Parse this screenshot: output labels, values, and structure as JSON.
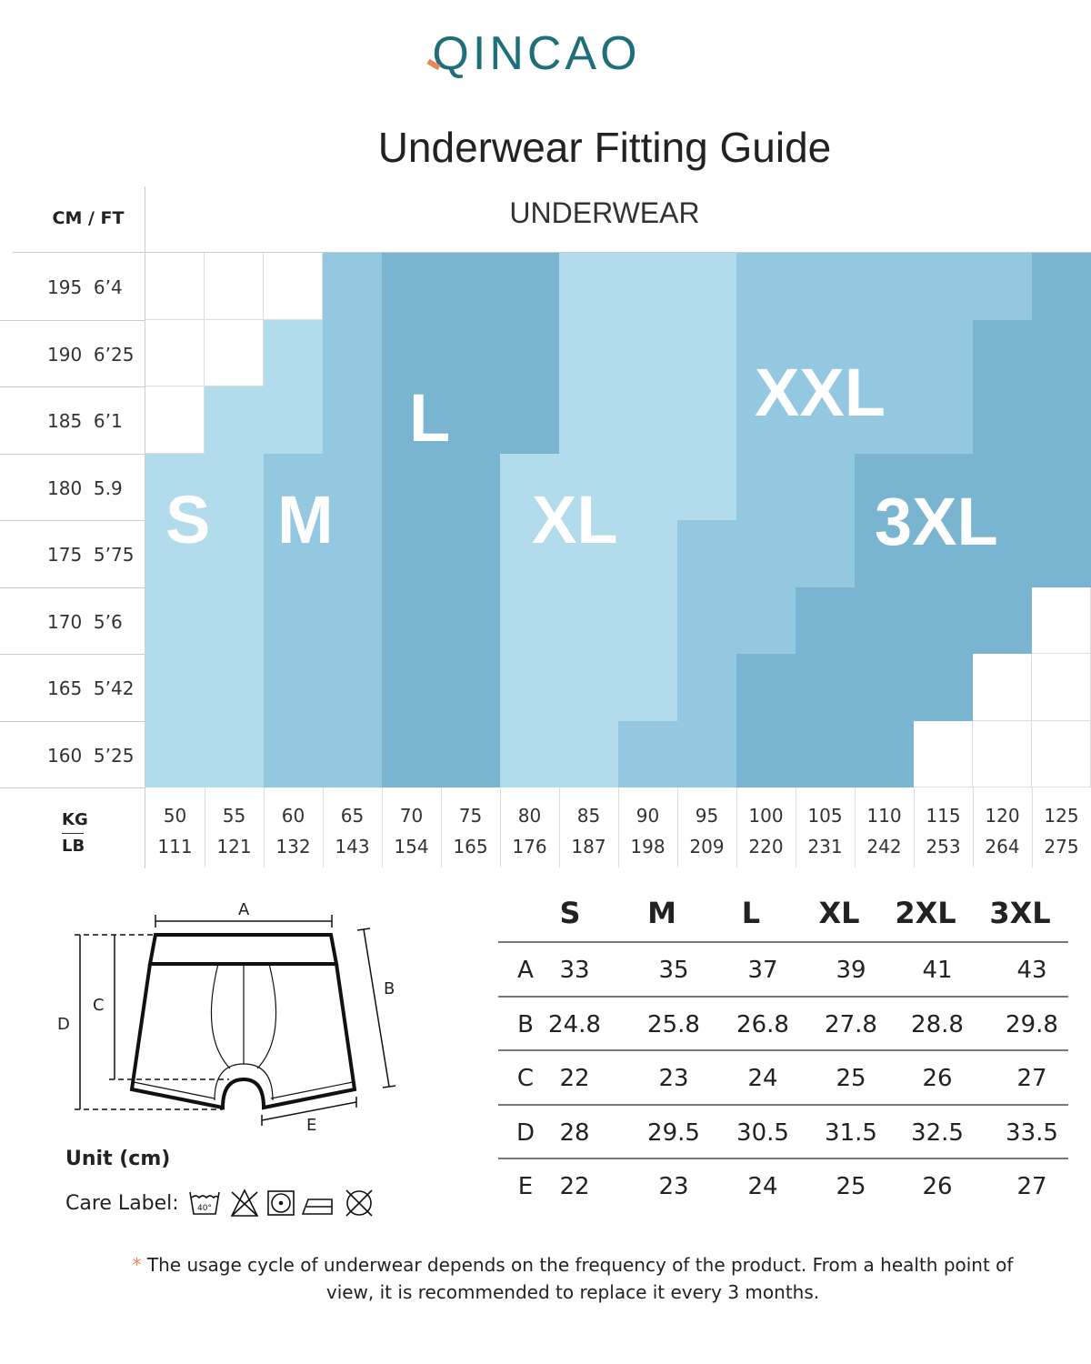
{
  "brand": {
    "name": "QINCAO",
    "colors": {
      "primary": "#1f6f7a",
      "accent": "#e8875a"
    }
  },
  "title": "Underwear Fitting Guide",
  "chart": {
    "subtitle": "UNDERWEAR",
    "height_header": "CM / FT",
    "weight_header_kg": "KG",
    "weight_header_lb": "LB",
    "heights": [
      {
        "cm": "195",
        "ft": "6’4"
      },
      {
        "cm": "190",
        "ft": "6’25"
      },
      {
        "cm": "185",
        "ft": "6’1"
      },
      {
        "cm": "180",
        "ft": "5.9"
      },
      {
        "cm": "175",
        "ft": "5’75"
      },
      {
        "cm": "170",
        "ft": "5’6"
      },
      {
        "cm": "165",
        "ft": "5’42"
      },
      {
        "cm": "160",
        "ft": "5’25"
      }
    ],
    "weights": [
      {
        "kg": "50",
        "lb": "111"
      },
      {
        "kg": "55",
        "lb": "121"
      },
      {
        "kg": "60",
        "lb": "132"
      },
      {
        "kg": "65",
        "lb": "143"
      },
      {
        "kg": "70",
        "lb": "154"
      },
      {
        "kg": "75",
        "lb": "165"
      },
      {
        "kg": "80",
        "lb": "176"
      },
      {
        "kg": "85",
        "lb": "187"
      },
      {
        "kg": "90",
        "lb": "198"
      },
      {
        "kg": "95",
        "lb": "209"
      },
      {
        "kg": "100",
        "lb": "220"
      },
      {
        "kg": "105",
        "lb": "231"
      },
      {
        "kg": "110",
        "lb": "242"
      },
      {
        "kg": "115",
        "lb": "253"
      },
      {
        "kg": "120",
        "lb": "264"
      },
      {
        "kg": "125",
        "lb": "275"
      }
    ],
    "size_labels": {
      "S": "S",
      "M": "M",
      "L": "L",
      "XL": "XL",
      "XXL": "XXL",
      "3XL": "3XL"
    },
    "size_colors": {
      "S": "#b2dbec",
      "M": "#93c8e0",
      "L": "#79b5d0",
      "XL": "#b2dbec",
      "XXL": "#93c8e0",
      "3XL": "#79b5d0"
    },
    "grid": [
      [
        "",
        "",
        "",
        "M",
        "L",
        "L",
        "L",
        "XL",
        "XL",
        "XL",
        "XXL",
        "XXL",
        "XXL",
        "XXL",
        "XXL",
        "3XL"
      ],
      [
        "",
        "",
        "S",
        "M",
        "L",
        "L",
        "L",
        "XL",
        "XL",
        "XL",
        "XXL",
        "XXL",
        "XXL",
        "XXL",
        "3XL",
        "3XL"
      ],
      [
        "",
        "S",
        "S",
        "M",
        "L",
        "L",
        "L",
        "XL",
        "XL",
        "XL",
        "XXL",
        "XXL",
        "XXL",
        "XXL",
        "3XL",
        "3XL"
      ],
      [
        "S",
        "S",
        "M",
        "M",
        "L",
        "L",
        "XL",
        "XL",
        "XL",
        "XL",
        "XXL",
        "XXL",
        "3XL",
        "3XL",
        "3XL",
        "3XL"
      ],
      [
        "S",
        "S",
        "M",
        "M",
        "L",
        "L",
        "XL",
        "XL",
        "XL",
        "XXL",
        "XXL",
        "XXL",
        "3XL",
        "3XL",
        "3XL",
        "3XL"
      ],
      [
        "S",
        "S",
        "M",
        "M",
        "L",
        "L",
        "XL",
        "XL",
        "XL",
        "XXL",
        "XXL",
        "3XL",
        "3XL",
        "3XL",
        "3XL",
        ""
      ],
      [
        "S",
        "S",
        "M",
        "M",
        "L",
        "L",
        "XL",
        "XL",
        "XL",
        "XXL",
        "3XL",
        "3XL",
        "3XL",
        "3XL",
        "",
        ""
      ],
      [
        "S",
        "S",
        "M",
        "M",
        "L",
        "L",
        "XL",
        "XL",
        "XXL",
        "XXL",
        "3XL",
        "3XL",
        "3XL",
        "",
        "",
        ""
      ]
    ]
  },
  "diagram": {
    "labels": {
      "A": "A",
      "B": "B",
      "C": "C",
      "D": "D",
      "E": "E"
    },
    "unit": "Unit (cm)",
    "care_label": "Care Label:",
    "wash_temp": "40°",
    "care_icons": [
      "wash-40-icon",
      "no-bleach-icon",
      "tumble-dry-icon",
      "iron-icon",
      "no-dry-clean-icon"
    ]
  },
  "measurements": {
    "sizes": [
      "S",
      "M",
      "L",
      "XL",
      "2XL",
      "3XL"
    ],
    "rows": [
      {
        "key": "A",
        "values": [
          "33",
          "35",
          "37",
          "39",
          "41",
          "43"
        ]
      },
      {
        "key": "B",
        "values": [
          "24.8",
          "25.8",
          "26.8",
          "27.8",
          "28.8",
          "29.8"
        ]
      },
      {
        "key": "C",
        "values": [
          "22",
          "23",
          "24",
          "25",
          "26",
          "27"
        ]
      },
      {
        "key": "D",
        "values": [
          "28",
          "29.5",
          "30.5",
          "31.5",
          "32.5",
          "33.5"
        ]
      },
      {
        "key": "E",
        "values": [
          "22",
          "23",
          "24",
          "25",
          "26",
          "27"
        ]
      }
    ]
  },
  "footnote": {
    "star": "*",
    "text": "The usage cycle of underwear depends on the frequency of the product. From a health point of view, it is recommended to replace it every 3 months."
  }
}
